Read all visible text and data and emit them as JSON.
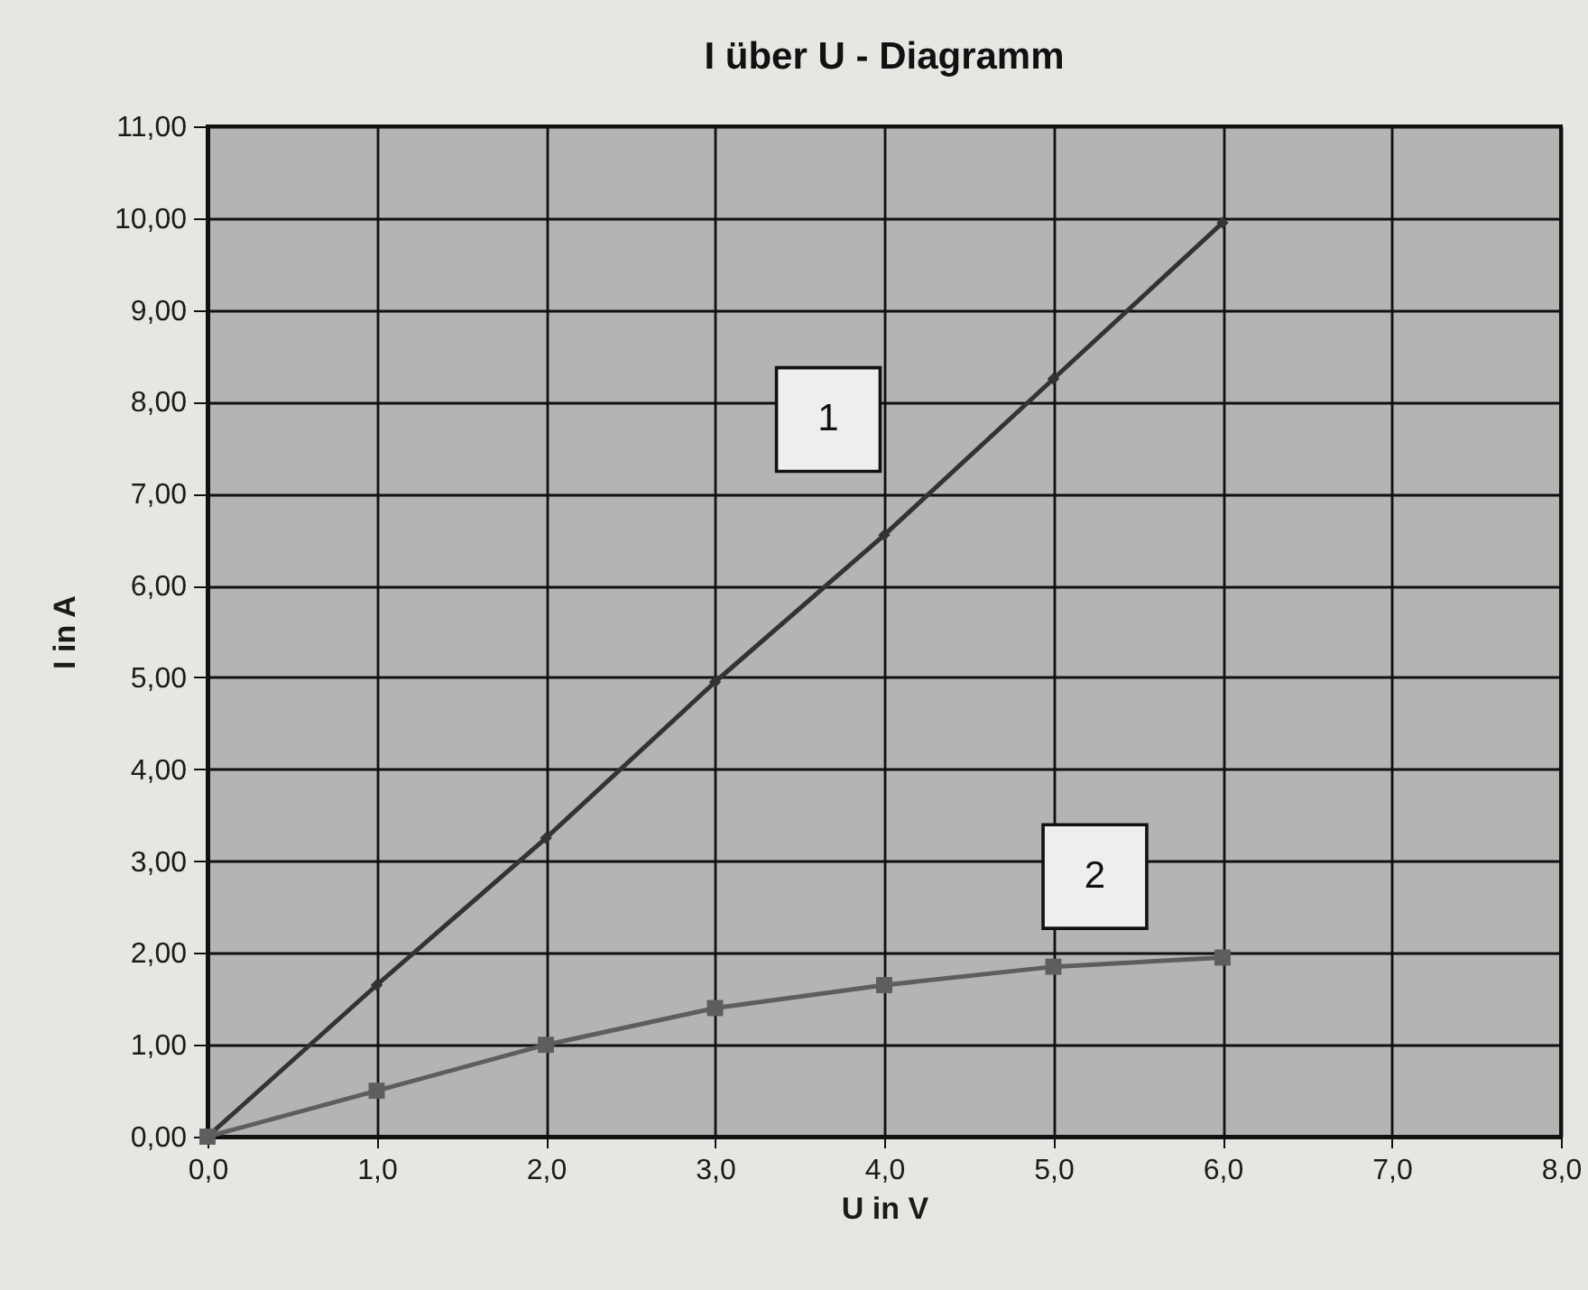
{
  "chart_data": {
    "type": "line",
    "title": "I über U - Diagramm",
    "xlabel": "U in V",
    "ylabel": "I in A",
    "x": [
      0,
      1,
      2,
      3,
      4,
      5,
      6
    ],
    "series": [
      {
        "name": "1",
        "color": "#333333",
        "marker": "diamond",
        "values": [
          0,
          1.65,
          3.25,
          4.95,
          6.55,
          8.25,
          9.95
        ]
      },
      {
        "name": "2",
        "color": "#5e5e5e",
        "marker": "square",
        "values": [
          0,
          0.5,
          1,
          1.4,
          1.65,
          1.85,
          1.95
        ]
      }
    ],
    "xlim": [
      0,
      8
    ],
    "ylim": [
      0,
      11
    ],
    "xticks": [
      {
        "value": 0,
        "label": "0,0"
      },
      {
        "value": 1,
        "label": "1,0"
      },
      {
        "value": 2,
        "label": "2,0"
      },
      {
        "value": 3,
        "label": "3,0"
      },
      {
        "value": 4,
        "label": "4,0"
      },
      {
        "value": 5,
        "label": "5,0"
      },
      {
        "value": 6,
        "label": "6,0"
      },
      {
        "value": 7,
        "label": "7,0"
      },
      {
        "value": 8,
        "label": "8,0"
      }
    ],
    "yticks": [
      {
        "value": 0,
        "label": "0,00"
      },
      {
        "value": 1,
        "label": "1,00"
      },
      {
        "value": 2,
        "label": "2,00"
      },
      {
        "value": 3,
        "label": "3,00"
      },
      {
        "value": 4,
        "label": "4,00"
      },
      {
        "value": 5,
        "label": "5,00"
      },
      {
        "value": 6,
        "label": "6,00"
      },
      {
        "value": 7,
        "label": "7,00"
      },
      {
        "value": 8,
        "label": "8,00"
      },
      {
        "value": 9,
        "label": "9,00"
      },
      {
        "value": 10,
        "label": "10,00"
      },
      {
        "value": 11,
        "label": "11,00"
      }
    ],
    "grid": true,
    "legend": false
  }
}
